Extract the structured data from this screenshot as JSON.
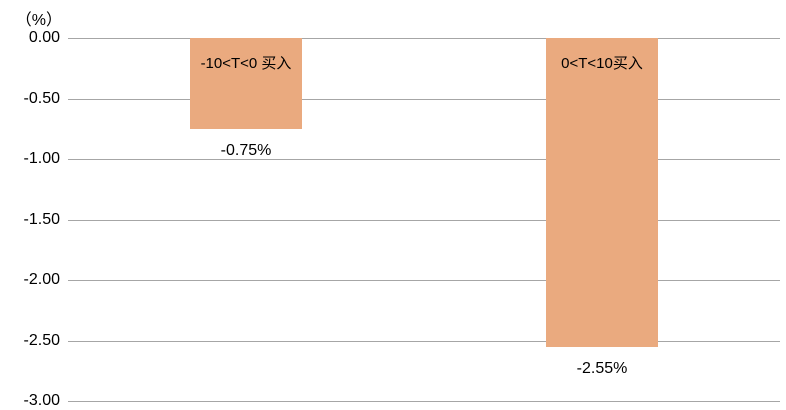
{
  "chart_data": {
    "type": "bar",
    "title": "",
    "unit_label": "（%）",
    "categories": [
      "-10<T<0 买入",
      "0<T<10买入"
    ],
    "values": [
      -0.75,
      -2.55
    ],
    "data_labels": [
      "-0.75%",
      "-2.55%"
    ],
    "ylabel": "（%）",
    "xlabel": "",
    "ylim": [
      -3.0,
      0.0
    ],
    "ytick_labels": [
      "0.00",
      "-0.50",
      "-1.00",
      "-1.50",
      "-2.00",
      "-2.50",
      "-3.00"
    ],
    "ytick_values": [
      0.0,
      -0.5,
      -1.0,
      -1.5,
      -2.0,
      -2.5,
      -3.0
    ],
    "grid": true,
    "legend_position": "none",
    "colors": {
      "bar_fill": "#EAAA7F",
      "gridline": "#A6A6A6",
      "text": "#000000",
      "background": "#FFFFFF"
    }
  }
}
